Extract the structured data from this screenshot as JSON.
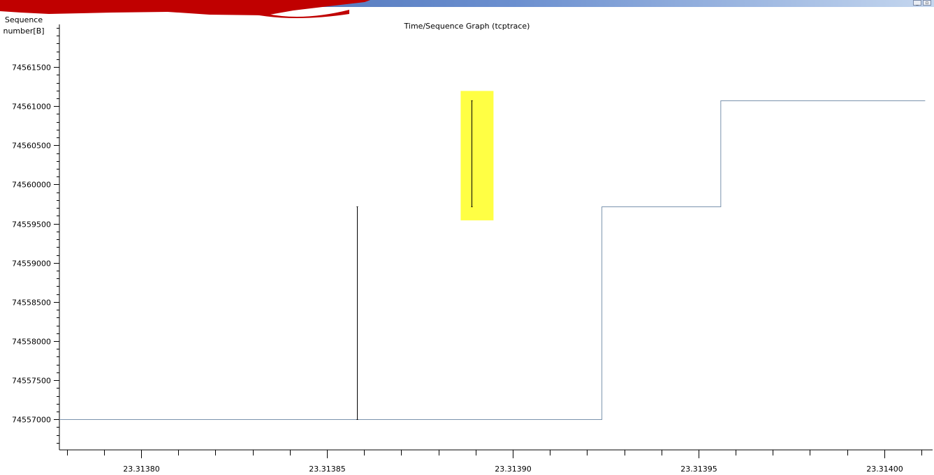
{
  "window": {
    "minimize_glyph": "_",
    "restore_glyph": "▫"
  },
  "chart_data": {
    "type": "line",
    "title": "Time/Sequence Graph (tcptrace)",
    "ylabel": "Sequence number[B]",
    "xlabel": "",
    "xlim": [
      23.313778,
      23.314013
    ],
    "ylim": [
      74556610,
      74562000
    ],
    "x_ticks": [
      "23.31380",
      "23.31385",
      "23.31390",
      "23.31395",
      "23.31400"
    ],
    "x_tick_values": [
      23.3138,
      23.31385,
      23.3139,
      23.31395,
      23.314
    ],
    "x_minor_step": 1e-05,
    "y_ticks": [
      "74557000",
      "74557500",
      "74558000",
      "74558500",
      "74559000",
      "74559500",
      "74560000",
      "74560500",
      "74561000",
      "74561500"
    ],
    "y_tick_values": [
      74557000,
      74557500,
      74558000,
      74558500,
      74559000,
      74559500,
      74560000,
      74560500,
      74561000,
      74561500
    ],
    "y_minor_step": 100,
    "grid": false,
    "series": [
      {
        "name": "",
        "kind": "step",
        "color": "#7a93ad",
        "points": [
          [
            23.313778,
            74557000
          ],
          [
            23.313924,
            74557000
          ],
          [
            23.313924,
            74559720
          ],
          [
            23.313956,
            74559720
          ],
          [
            23.313956,
            74561070
          ],
          [
            23.314011,
            74561070
          ]
        ]
      }
    ],
    "segments": [
      {
        "x": 23.313858,
        "y_start": 74557000,
        "y_end": 74559720,
        "color": "#000000"
      },
      {
        "x": 23.313889,
        "y_start": 74559720,
        "y_end": 74561070,
        "color": "#000000",
        "highlight": "#ffff44"
      }
    ]
  }
}
